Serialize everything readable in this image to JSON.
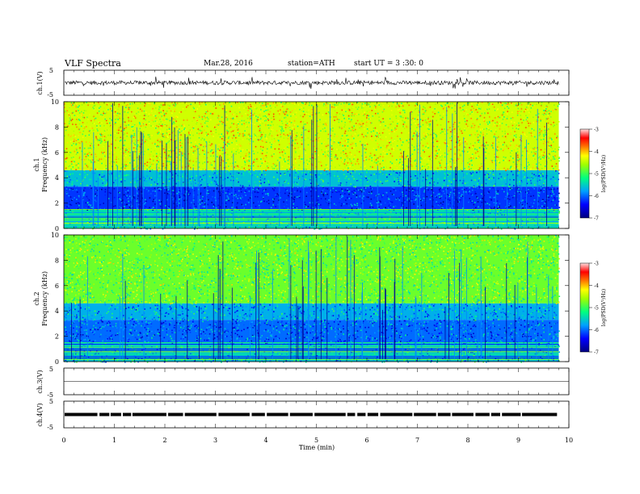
{
  "header": {
    "title": "VLF  Spectra",
    "date": "Mar.28, 2016",
    "station": "station=ATH",
    "start": "start  UT  =   3  :30: 0"
  },
  "chart_data": [
    {
      "type": "line",
      "panel": "ch1-waveform",
      "ylabel": "ch.1(V)",
      "y_ticks": [
        "5",
        "-5"
      ],
      "ylim": [
        -5,
        5
      ],
      "x_range_min": [
        0,
        9.8
      ],
      "signal": "noise waveform fluctuating roughly between -1.5 and 1.5 V with spikes"
    },
    {
      "type": "heatmap",
      "panel": "ch1-spectrogram",
      "ylabel_top": "ch.1",
      "ylabel": "Frequency  (kHz)",
      "y_ticks": [
        "0",
        "2",
        "4",
        "6",
        "8",
        "10"
      ],
      "ylim": [
        0,
        10
      ],
      "xlim": [
        0,
        9.8
      ],
      "colorbar": {
        "label": "log(PSD(V²/Hz)",
        "ticks": [
          "-3",
          "-4",
          "-5",
          "-6",
          "-7"
        ],
        "range": [
          -7,
          -3
        ]
      },
      "profile": [
        {
          "f_from": 0,
          "f_to": 1.5,
          "level": -5.4
        },
        {
          "f_from": 1.5,
          "f_to": 3.3,
          "level": -6.2
        },
        {
          "f_from": 3.3,
          "f_to": 4.6,
          "level": -5.6
        },
        {
          "f_from": 4.6,
          "f_to": 10,
          "level": -4.4
        }
      ]
    },
    {
      "type": "heatmap",
      "panel": "ch2-spectrogram",
      "ylabel_top": "ch.2",
      "ylabel": "Frequency  (kHz)",
      "y_ticks": [
        "0",
        "2",
        "4",
        "6",
        "8",
        "10"
      ],
      "ylim": [
        0,
        10
      ],
      "xlim": [
        0,
        9.8
      ],
      "colorbar": {
        "label": "log(PSD(V²/Hz)",
        "ticks": [
          "-3",
          "-4",
          "-5",
          "-6",
          "-7"
        ],
        "range": [
          -7,
          -3
        ]
      },
      "profile": [
        {
          "f_from": 0,
          "f_to": 1.5,
          "level": -5.6
        },
        {
          "f_from": 1.5,
          "f_to": 3.3,
          "level": -6.0
        },
        {
          "f_from": 3.3,
          "f_to": 4.6,
          "level": -5.7
        },
        {
          "f_from": 4.6,
          "f_to": 10,
          "level": -4.8
        }
      ]
    },
    {
      "type": "line",
      "panel": "ch3-waveform",
      "ylabel": "ch.3(V)",
      "y_ticks": [
        "5",
        "-5"
      ],
      "ylim": [
        -5,
        5
      ],
      "signal": "flat at 0 V"
    },
    {
      "type": "line",
      "panel": "ch4-waveform",
      "ylabel": "ch.4(V)",
      "y_ticks": [
        "5",
        "-5"
      ],
      "ylim": [
        -5,
        5
      ],
      "signal": "dashed level near 0 V"
    }
  ],
  "x_axis": {
    "label": "Time  (min)",
    "ticks": [
      "0",
      "1",
      "2",
      "3",
      "4",
      "5",
      "6",
      "7",
      "8",
      "9",
      "10"
    ],
    "range": [
      0,
      10
    ]
  }
}
